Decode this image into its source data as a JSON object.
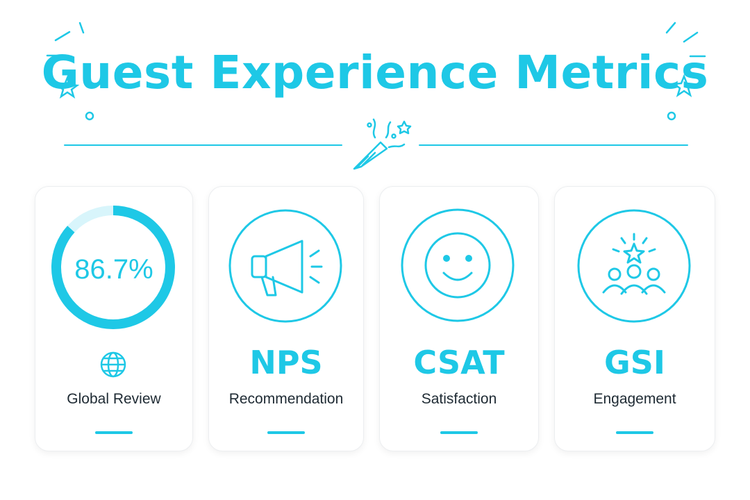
{
  "title": "Guest Experience Metrics",
  "colors": {
    "accent": "#1ec8e6",
    "accent_light": "#d8f5fb",
    "text": "#1e2a33",
    "card_border": "#eceef0"
  },
  "cards": [
    {
      "value": "86.7%",
      "progress_percent": 86.7,
      "icon": "globe-icon",
      "label": "Global Review"
    },
    {
      "abbr": "NPS",
      "icon": "megaphone-icon",
      "label": "Recommendation"
    },
    {
      "abbr": "CSAT",
      "icon": "smiley-face-icon",
      "label": "Satisfaction"
    },
    {
      "abbr": "GSI",
      "icon": "people-star-icon",
      "label": "Engagement"
    }
  ]
}
